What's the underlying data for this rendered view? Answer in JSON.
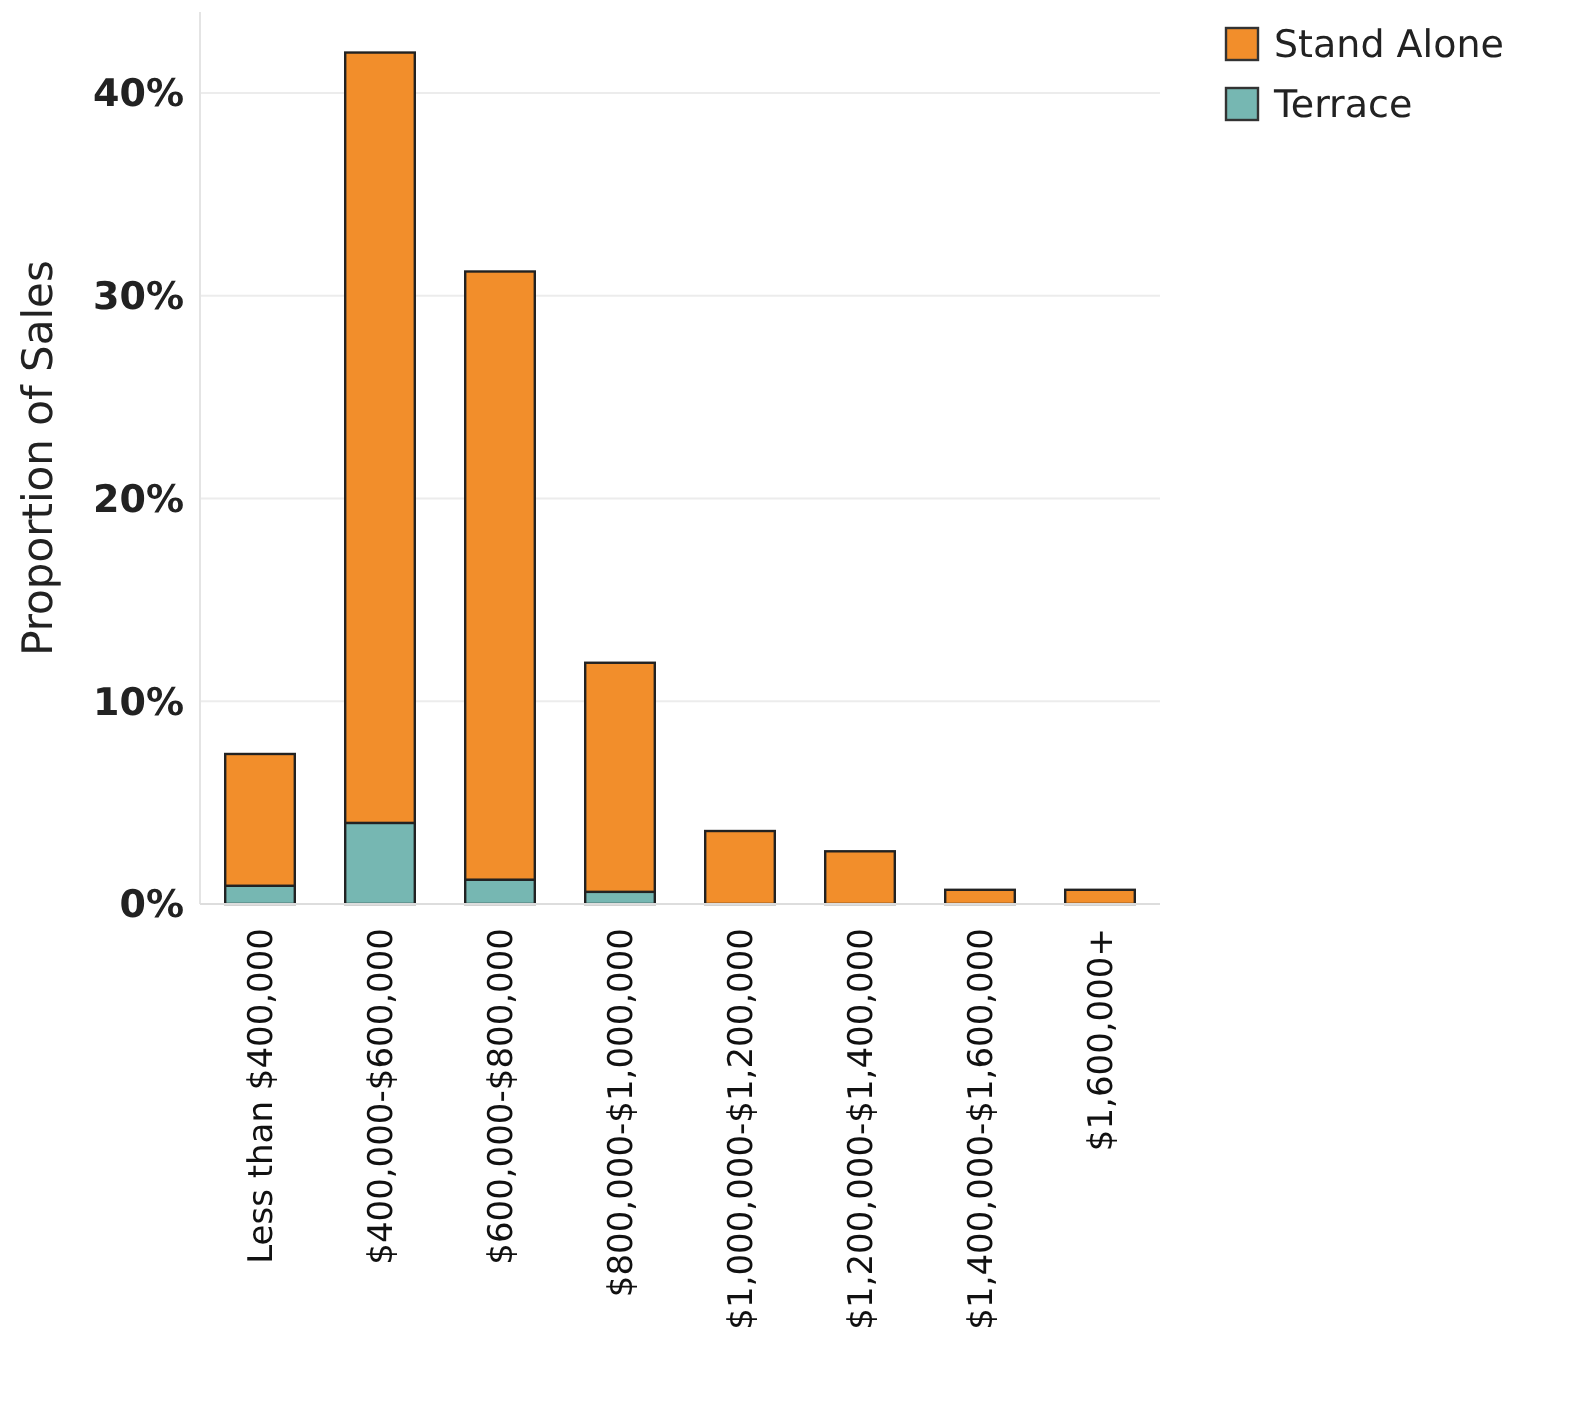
{
  "chart_data": {
    "type": "bar",
    "stacked": true,
    "ylabel": "Proportion of Sales",
    "categories": [
      "Less than $400,000",
      "$400,000-$600,000",
      "$600,000-$800,000",
      "$800,000-$1,000,000",
      "$1,000,000-$1,200,000",
      "$1,200,000-$1,400,000",
      "$1,400,000-$1,600,000",
      "$1,600,000+"
    ],
    "series": [
      {
        "name": "Terrace",
        "color": "#76b7b2",
        "values": [
          0.9,
          4.0,
          1.2,
          0.6,
          0,
          0,
          0,
          0
        ]
      },
      {
        "name": "Stand Alone",
        "color": "#f28e2b",
        "values": [
          6.5,
          38.0,
          30.0,
          11.3,
          3.6,
          2.6,
          0.7,
          0.7
        ]
      }
    ],
    "ylim": [
      0,
      44
    ],
    "yticks": [
      {
        "value": 0,
        "label": "0%"
      },
      {
        "value": 10,
        "label": "10%"
      },
      {
        "value": 20,
        "label": "20%"
      },
      {
        "value": 30,
        "label": "30%"
      },
      {
        "value": 40,
        "label": "40%"
      }
    ],
    "grid": "y",
    "legend": "top right"
  }
}
